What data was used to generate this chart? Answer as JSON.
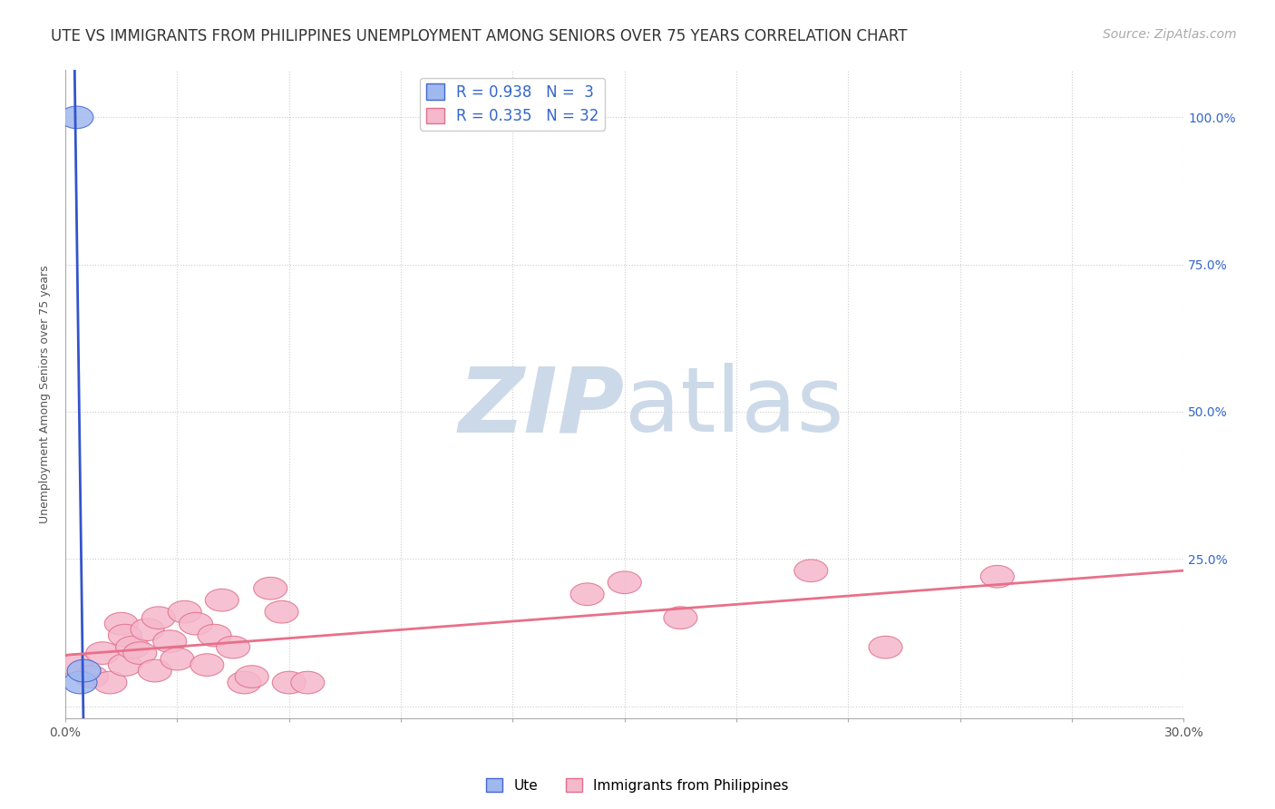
{
  "title": "UTE VS IMMIGRANTS FROM PHILIPPINES UNEMPLOYMENT AMONG SENIORS OVER 75 YEARS CORRELATION CHART",
  "source": "Source: ZipAtlas.com",
  "ylabel": "Unemployment Among Seniors over 75 years",
  "xlim": [
    0.0,
    0.3
  ],
  "ylim": [
    -0.02,
    1.08
  ],
  "yticks": [
    0.0,
    0.25,
    0.5,
    0.75,
    1.0
  ],
  "right_ytick_labels": [
    "",
    "25.0%",
    "50.0%",
    "75.0%",
    "100.0%"
  ],
  "ute_scatter_color": "#a0b8f0",
  "ute_scatter_edge": "#4466cc",
  "philippines_scatter_color": "#f5b8cc",
  "philippines_scatter_edge": "#e0708a",
  "ute_line_color": "#3355cc",
  "philippines_line_color": "#e8708a",
  "R_ute": 0.938,
  "N_ute": 3,
  "R_phil": 0.335,
  "N_phil": 32,
  "ute_points_x": [
    0.003,
    0.004,
    0.005
  ],
  "ute_points_y": [
    1.0,
    0.04,
    0.06
  ],
  "phil_points_x": [
    0.003,
    0.007,
    0.01,
    0.012,
    0.015,
    0.016,
    0.016,
    0.018,
    0.02,
    0.022,
    0.024,
    0.025,
    0.028,
    0.03,
    0.032,
    0.035,
    0.038,
    0.04,
    0.042,
    0.045,
    0.048,
    0.05,
    0.055,
    0.058,
    0.06,
    0.065,
    0.14,
    0.15,
    0.165,
    0.2,
    0.22,
    0.25
  ],
  "phil_points_y": [
    0.07,
    0.05,
    0.09,
    0.04,
    0.14,
    0.12,
    0.07,
    0.1,
    0.09,
    0.13,
    0.06,
    0.15,
    0.11,
    0.08,
    0.16,
    0.14,
    0.07,
    0.12,
    0.18,
    0.1,
    0.04,
    0.05,
    0.2,
    0.16,
    0.04,
    0.04,
    0.19,
    0.21,
    0.15,
    0.23,
    0.1,
    0.22
  ],
  "background_color": "#ffffff",
  "grid_color": "#cccccc",
  "legend_R_color": "#3366cc",
  "watermark_color": "#ccd9e8",
  "title_fontsize": 12,
  "source_fontsize": 10,
  "legend_fontsize": 12,
  "axis_label_fontsize": 9,
  "tick_fontsize": 10
}
